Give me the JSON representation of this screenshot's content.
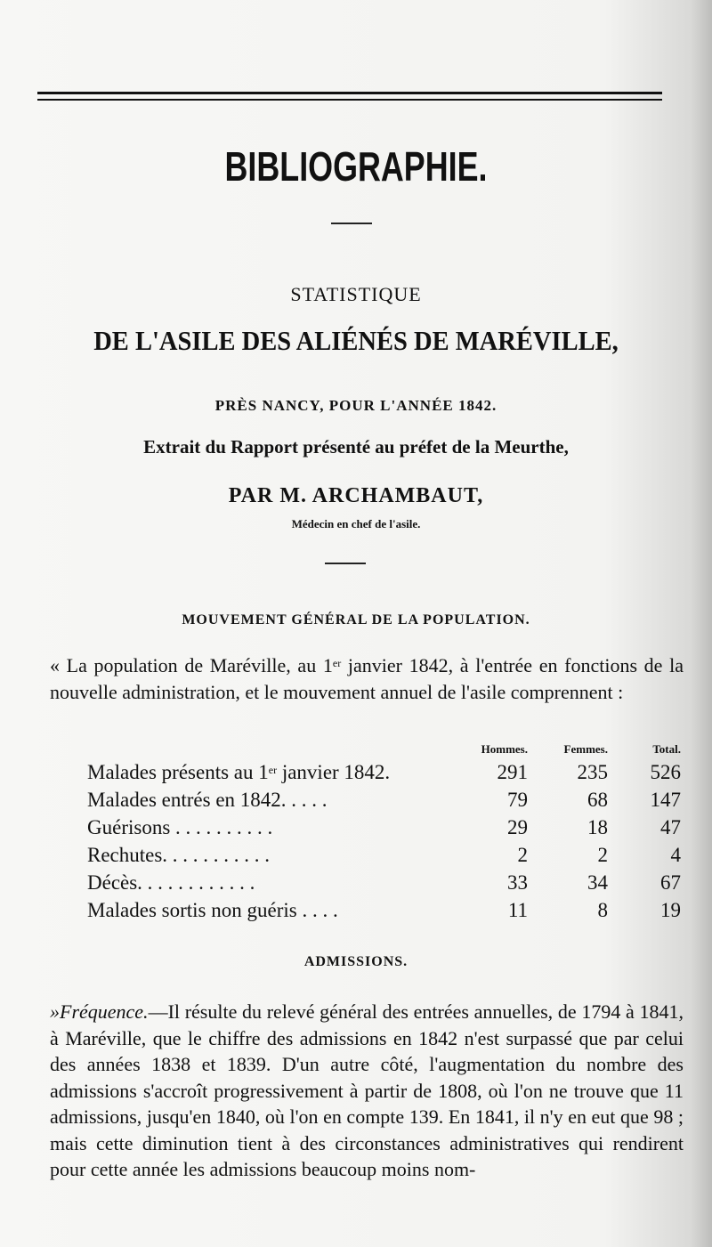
{
  "section_title": "BIBLIOGRAPHIE.",
  "subtitle": "STATISTIQUE",
  "main_title": "DE L'ASILE DES ALIÉNÉS DE MARÉVILLE,",
  "location_year": "PRÈS NANCY, POUR L'ANNÉE 1842.",
  "extract": "Extrait du Rapport présenté au préfet de la Meurthe,",
  "author": "PAR M. ARCHAMBAUT,",
  "author_role": "Médecin en chef de l'asile.",
  "section_heading_1": "MOUVEMENT GÉNÉRAL DE LA POPULATION.",
  "intro_paragraph": {
    "before_sup": "« La population de Maréville, au 1",
    "sup": "er",
    "after_sup": " janvier 1842, à l'entrée en fonctions de la nouvelle administration, et le mouvement annuel de l'asile comprennent :"
  },
  "table": {
    "headers": [
      "Hommes.",
      "Femmes.",
      "Total."
    ],
    "rows": [
      {
        "label_before": "Malades présents au 1",
        "label_sup": "er",
        "label_after": " janvier 1842.",
        "hommes": "291",
        "femmes": "235",
        "total": "526"
      },
      {
        "label_before": "Malades entrés en 1842.  .  .  .  .",
        "label_sup": "",
        "label_after": "",
        "hommes": "79",
        "femmes": "68",
        "total": "147"
      },
      {
        "label_before": "Guérisons .  .  .  .  .  .  .  .  .  .",
        "label_sup": "",
        "label_after": "",
        "hommes": "29",
        "femmes": "18",
        "total": "47"
      },
      {
        "label_before": "Rechutes. .  .  .  .  .  .  .  .  .  .",
        "label_sup": "",
        "label_after": "",
        "hommes": "2",
        "femmes": "2",
        "total": "4"
      },
      {
        "label_before": "Décès. .  .  .  .  .  .  .  .  .  .  .",
        "label_sup": "",
        "label_after": "",
        "hommes": "33",
        "femmes": "34",
        "total": "67"
      },
      {
        "label_before": "Malades sortis non guéris .  .  .  .",
        "label_sup": "",
        "label_after": "",
        "hommes": "11",
        "femmes": "8",
        "total": "19"
      }
    ]
  },
  "section_heading_2": "ADMISSIONS.",
  "admissions_paragraph": {
    "lead": "»Fréquence.",
    "text": "—Il résulte du relevé général des entrées annuelles, de 1794 à 1841, à Maréville, que le chiffre des admissions en 1842 n'est surpassé que par celui des années 1838 et 1839. D'un autre côté, l'augmentation du nombre des admissions s'accroît progressivement à partir de 1808, où l'on ne trouve que 11 admissions, jusqu'en 1840, où l'on en compte 139. En 1841, il n'y en eut que 98 ; mais cette diminution tient à des circonstances administratives qui rendirent pour cette année les admissions beaucoup moins nom-"
  }
}
